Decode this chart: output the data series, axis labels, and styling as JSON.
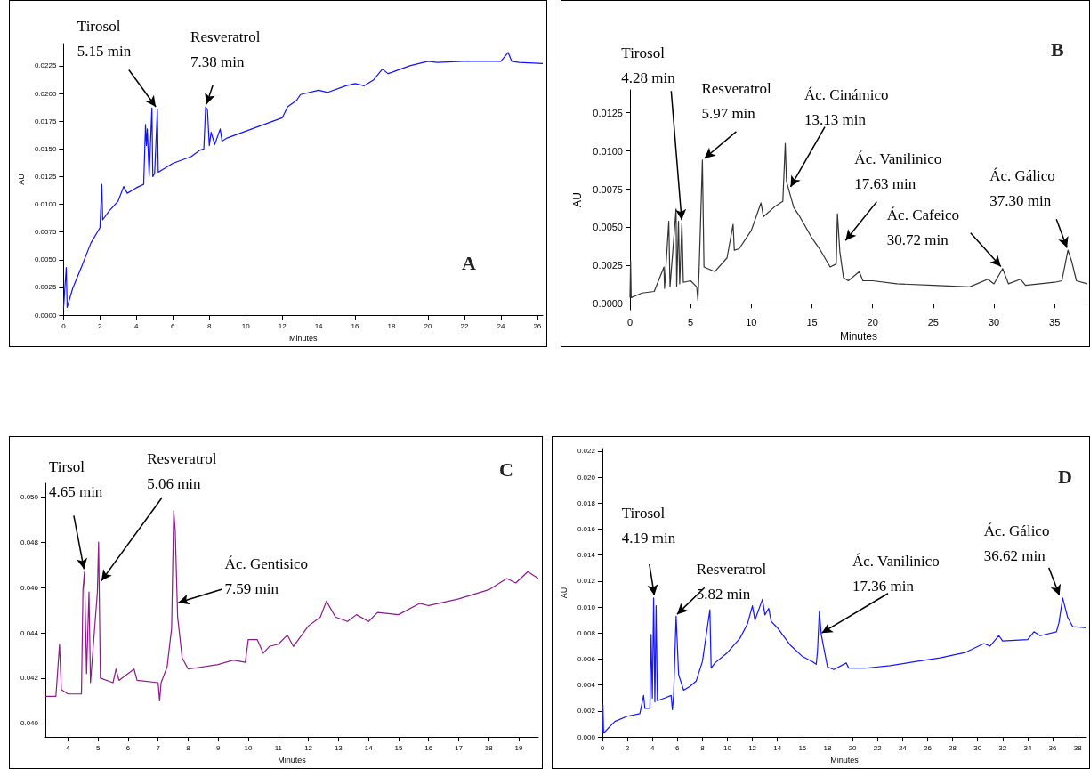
{
  "chart_data": [
    {
      "type": "line",
      "title": "A",
      "xlabel": "Minutes",
      "ylabel": "AU",
      "xlim": [
        0,
        26.3
      ],
      "ylim": [
        0,
        0.0245
      ],
      "xticks": [
        0,
        2,
        4,
        6,
        8,
        10,
        12,
        14,
        16,
        18,
        20,
        22,
        24,
        26
      ],
      "yticks": [
        {
          "value": 0,
          "label": "0.0000"
        },
        {
          "value": 0.0025,
          "label": "0.0025"
        },
        {
          "value": 0.005,
          "label": "0.0050"
        },
        {
          "value": 0.0075,
          "label": "0.0075"
        },
        {
          "value": 0.01,
          "label": "0.0100"
        },
        {
          "value": 0.0125,
          "label": "0.0125"
        },
        {
          "value": 0.015,
          "label": "0.0150"
        },
        {
          "value": 0.0175,
          "label": "0.0175"
        },
        {
          "value": 0.02,
          "label": "0.0200"
        },
        {
          "value": 0.0225,
          "label": "0.0225"
        }
      ],
      "series": [
        {
          "color": "#1010ff",
          "x": [
            0,
            0.15,
            0.2,
            0.5,
            1,
            1.5,
            2,
            2.1,
            2.15,
            2.5,
            3,
            3.3,
            3.5,
            4,
            4.4,
            4.5,
            4.55,
            4.6,
            4.7,
            4.85,
            4.9,
            5,
            5.15,
            5.2,
            5.5,
            6,
            7,
            7.5,
            7.7,
            7.8,
            7.9,
            8,
            8.1,
            8.3,
            8.6,
            8.7,
            9,
            10,
            11,
            12,
            12.3,
            12.8,
            13,
            14,
            14.5,
            15.5,
            16,
            16.5,
            17,
            17.5,
            17.8,
            18,
            19,
            20,
            20.5,
            22,
            24,
            24.4,
            24.6,
            25,
            26.3
          ],
          "values": [
            0.0006,
            0.0043,
            0.0007,
            0.0024,
            0.0044,
            0.0065,
            0.0079,
            0.0118,
            0.0086,
            0.0094,
            0.0103,
            0.0116,
            0.011,
            0.0115,
            0.0118,
            0.0172,
            0.0153,
            0.0168,
            0.0125,
            0.0187,
            0.0125,
            0.0128,
            0.0186,
            0.0129,
            0.0132,
            0.0137,
            0.0143,
            0.0149,
            0.015,
            0.0188,
            0.0185,
            0.0153,
            0.0165,
            0.0154,
            0.0168,
            0.0157,
            0.016,
            0.0166,
            0.0172,
            0.0178,
            0.0188,
            0.0194,
            0.0199,
            0.0203,
            0.0201,
            0.0207,
            0.0209,
            0.0207,
            0.0212,
            0.0222,
            0.0218,
            0.0219,
            0.0225,
            0.0229,
            0.0228,
            0.0229,
            0.0229,
            0.0237,
            0.0229,
            0.0228,
            0.0227
          ]
        }
      ],
      "annotations": [
        {
          "text": "Tirosol\n5.15 min",
          "x": 5.15,
          "y": 0.0186
        },
        {
          "text": "Resveratrol\n7.38 min",
          "x": 7.8,
          "y": 0.0188
        }
      ]
    },
    {
      "type": "line",
      "title": "B",
      "xlabel": "Minutes",
      "ylabel": "AU",
      "xlim": [
        0,
        37.7
      ],
      "ylim": [
        -0.0004,
        0.014
      ],
      "xticks": [
        0,
        5,
        10,
        15,
        20,
        25,
        30,
        35
      ],
      "yticks": [
        {
          "value": 0,
          "label": "0.0000"
        },
        {
          "value": 0.0025,
          "label": "0.0025"
        },
        {
          "value": 0.005,
          "label": "0.0050"
        },
        {
          "value": 0.0075,
          "label": "0.0075"
        },
        {
          "value": 0.01,
          "label": "0.0100"
        },
        {
          "value": 0.0125,
          "label": "0.0125"
        }
      ],
      "series": [
        {
          "color": "#333333",
          "x": [
            0,
            0.05,
            0.1,
            1,
            2,
            2.8,
            2.85,
            3.2,
            3.3,
            3.8,
            3.85,
            4,
            4.1,
            4.28,
            4.4,
            5,
            5.5,
            5.6,
            5.7,
            5.97,
            6.1,
            7,
            8,
            8.5,
            8.6,
            9,
            10,
            10.8,
            11,
            12,
            12.6,
            12.8,
            12.9,
            13.5,
            14,
            15,
            15.7,
            16.5,
            17,
            17.1,
            17.3,
            17.6,
            18,
            18.9,
            19.2,
            20,
            22,
            25,
            28,
            29.5,
            30,
            30.72,
            31.2,
            32.2,
            32.6,
            35,
            35.6,
            36.1,
            36.4,
            36.8,
            37.7
          ],
          "values": [
            0.0004,
            0.0028,
            0.0004,
            0.0007,
            0.0008,
            0.0024,
            0.001,
            0.0054,
            0.0011,
            0.0062,
            0.0011,
            0.0054,
            0.0013,
            0.0053,
            0.0014,
            0.0015,
            0.0011,
            0.0002,
            0.0022,
            0.0094,
            0.0024,
            0.0021,
            0.003,
            0.0052,
            0.0035,
            0.0036,
            0.0048,
            0.0066,
            0.0057,
            0.0064,
            0.0067,
            0.0105,
            0.008,
            0.0063,
            0.0057,
            0.0043,
            0.0035,
            0.0024,
            0.0026,
            0.0059,
            0.0034,
            0.0017,
            0.0015,
            0.0021,
            0.0015,
            0.0015,
            0.0013,
            0.0012,
            0.0011,
            0.0016,
            0.0013,
            0.0023,
            0.0013,
            0.0016,
            0.0012,
            0.0014,
            0.0015,
            0.0035,
            0.0028,
            0.0015,
            0.0013
          ]
        }
      ],
      "annotations": [
        {
          "text": "Tirosol\n4.28 min",
          "x": 4.28,
          "y": 0.0053
        },
        {
          "text": "Resveratrol\n5.97 min",
          "x": 5.97,
          "y": 0.0094
        },
        {
          "text": "Ác. Cinámico\n13.13 min",
          "x": 13.13,
          "y": 0.0075
        },
        {
          "text": "Ác. Vanilinico\n17.63 min",
          "x": 17.63,
          "y": 0.004
        },
        {
          "text": "Ác. Cafeico\n30.72 min",
          "x": 30.72,
          "y": 0.0023
        },
        {
          "text": "Ác. Gálico\n37.30 min",
          "x": 36.1,
          "y": 0.0035
        }
      ]
    },
    {
      "type": "line",
      "title": "C",
      "xlabel": "Minutes",
      "xlim": [
        3.25,
        19.65
      ],
      "ylim": [
        0.0394,
        0.0506
      ],
      "xticks": [
        4,
        5,
        6,
        7,
        8,
        9,
        10,
        11,
        12,
        13,
        14,
        15,
        16,
        17,
        18,
        19
      ],
      "yticks": [
        {
          "value": 0.04,
          "label": "0.040"
        },
        {
          "value": 0.042,
          "label": "0.042"
        },
        {
          "value": 0.044,
          "label": "0.044"
        },
        {
          "value": 0.046,
          "label": "0.046"
        },
        {
          "value": 0.048,
          "label": "0.048"
        },
        {
          "value": 0.05,
          "label": "0.050"
        }
      ],
      "series": [
        {
          "color": "#8b1a8b",
          "x": [
            3.25,
            3.6,
            3.72,
            3.78,
            4,
            4.45,
            4.5,
            4.55,
            4.62,
            4.7,
            4.75,
            4.98,
            5.02,
            5.08,
            5.5,
            5.6,
            5.7,
            6.2,
            6.3,
            7,
            7.05,
            7.1,
            7.3,
            7.45,
            7.52,
            7.57,
            7.65,
            7.8,
            8,
            9,
            9.5,
            9.9,
            10,
            10.3,
            10.5,
            10.7,
            11,
            11.3,
            11.5,
            12,
            12.4,
            12.6,
            12.9,
            13.3,
            13.6,
            14,
            14.3,
            15,
            15.7,
            16,
            17,
            18,
            18.6,
            18.9,
            19.3,
            19.65
          ],
          "values": [
            0.0412,
            0.0412,
            0.0435,
            0.0415,
            0.0413,
            0.0413,
            0.0459,
            0.0467,
            0.0422,
            0.0458,
            0.0418,
            0.0458,
            0.048,
            0.042,
            0.0418,
            0.0424,
            0.0419,
            0.0424,
            0.0419,
            0.0418,
            0.041,
            0.0418,
            0.0425,
            0.0442,
            0.0494,
            0.0485,
            0.0447,
            0.0429,
            0.0424,
            0.0426,
            0.0428,
            0.0427,
            0.0437,
            0.0437,
            0.0431,
            0.0434,
            0.0435,
            0.0439,
            0.0434,
            0.0443,
            0.0447,
            0.0454,
            0.0447,
            0.0445,
            0.0448,
            0.0445,
            0.0449,
            0.0448,
            0.0453,
            0.0452,
            0.0455,
            0.0459,
            0.0464,
            0.0462,
            0.0467,
            0.0464
          ]
        }
      ],
      "annotations": [
        {
          "text": "Tirsol\n4.65 min",
          "x": 4.55,
          "y": 0.0467
        },
        {
          "text": "Resveratrol\n5.06 min",
          "x": 5.06,
          "y": 0.0462
        },
        {
          "text": "Ác. Gentisico\n7.59 min",
          "x": 7.59,
          "y": 0.0453
        }
      ]
    },
    {
      "type": "line",
      "title": "D",
      "xlabel": "Minutes",
      "ylabel": "AU",
      "xlim": [
        0,
        38.7
      ],
      "ylim": [
        0,
        0.0222
      ],
      "xticks": [
        0,
        2,
        4,
        6,
        8,
        10,
        12,
        14,
        16,
        18,
        20,
        22,
        24,
        26,
        28,
        30,
        32,
        34,
        36,
        38
      ],
      "yticks": [
        {
          "value": 0,
          "label": "0.000"
        },
        {
          "value": 0.002,
          "label": "0.002"
        },
        {
          "value": 0.004,
          "label": "0.004"
        },
        {
          "value": 0.006,
          "label": "0.006"
        },
        {
          "value": 0.008,
          "label": "0.008"
        },
        {
          "value": 0.01,
          "label": "0.010"
        },
        {
          "value": 0.012,
          "label": "0.012"
        },
        {
          "value": 0.014,
          "label": "0.014"
        },
        {
          "value": 0.016,
          "label": "0.016"
        },
        {
          "value": 0.018,
          "label": "0.018"
        },
        {
          "value": 0.02,
          "label": "0.020"
        },
        {
          "value": 0.022,
          "label": "0.022"
        }
      ],
      "series": [
        {
          "color": "#1515ff",
          "x": [
            0,
            0.05,
            0.1,
            1,
            2,
            3,
            3.3,
            3.4,
            3.8,
            3.9,
            4,
            4.1,
            4.2,
            4.3,
            4.4,
            5,
            5.5,
            5.6,
            5.7,
            5.9,
            6.1,
            6.5,
            7,
            7.5,
            8,
            8.6,
            8.7,
            9,
            10,
            11,
            11.6,
            12,
            12.2,
            12.8,
            13,
            13.3,
            13.5,
            14,
            15,
            16,
            16.8,
            17.1,
            17.2,
            17.35,
            17.5,
            18,
            18.5,
            19.5,
            19.7,
            21,
            23,
            25,
            27,
            29,
            30.5,
            31,
            31.7,
            32,
            34,
            34.5,
            35,
            36.3,
            36.5,
            36.8,
            37.2,
            37.6,
            38.7
          ],
          "values": [
            0.0004,
            0.0025,
            0.0003,
            0.0012,
            0.0016,
            0.0018,
            0.0032,
            0.0022,
            0.0022,
            0.0079,
            0.003,
            0.0107,
            0.0027,
            0.0101,
            0.0028,
            0.003,
            0.0032,
            0.0021,
            0.0032,
            0.0093,
            0.0048,
            0.0036,
            0.0039,
            0.0043,
            0.0058,
            0.0098,
            0.0053,
            0.0057,
            0.0065,
            0.0076,
            0.0087,
            0.0101,
            0.009,
            0.0106,
            0.0094,
            0.0099,
            0.0089,
            0.0084,
            0.0071,
            0.0062,
            0.0058,
            0.0056,
            0.0066,
            0.0097,
            0.0079,
            0.0054,
            0.0052,
            0.0057,
            0.0053,
            0.0053,
            0.0055,
            0.0058,
            0.0061,
            0.0065,
            0.0072,
            0.007,
            0.0078,
            0.0074,
            0.0075,
            0.0081,
            0.0078,
            0.0081,
            0.0088,
            0.0107,
            0.0092,
            0.0085,
            0.0084
          ]
        }
      ],
      "annotations": [
        {
          "text": "Tirosol\n4.19 min",
          "x": 4.19,
          "y": 0.0107
        },
        {
          "text": "Resveratrol\n5.82 min",
          "x": 5.82,
          "y": 0.0093
        },
        {
          "text": "Ác. Vanilinico\n17.36 min",
          "x": 17.36,
          "y": 0.0079
        },
        {
          "text": "Ác. Gálico\n36.62 min",
          "x": 36.62,
          "y": 0.0107
        }
      ]
    }
  ]
}
